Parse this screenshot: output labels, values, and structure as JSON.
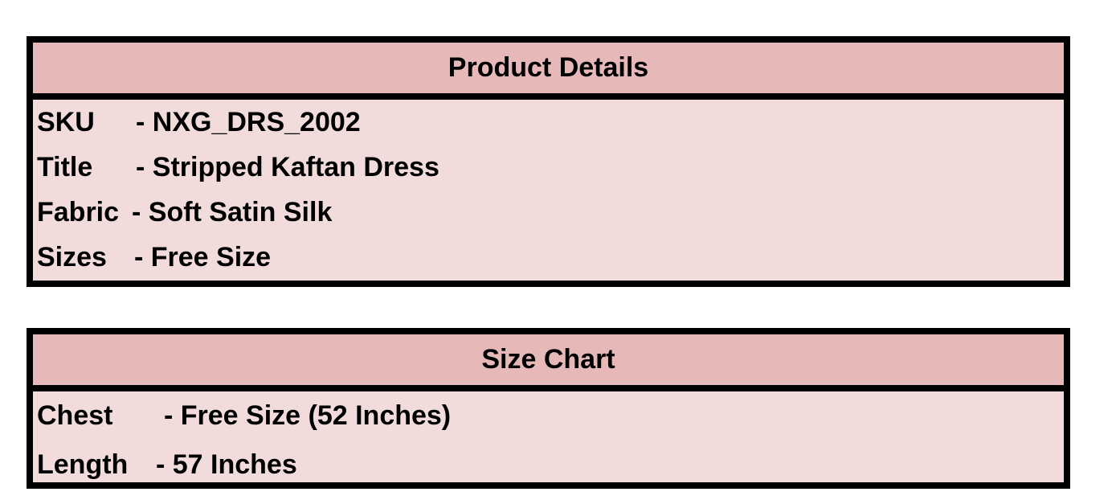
{
  "product_details": {
    "title": "Product Details",
    "rows": [
      {
        "label": "SKU",
        "value": "- NXG_DRS_2002"
      },
      {
        "label": "Title",
        "value": "- Stripped Kaftan Dress"
      },
      {
        "label": "Fabric",
        "value": "- Soft Satin Silk"
      },
      {
        "label": "Sizes",
        "value": "- Free Size"
      }
    ]
  },
  "size_chart": {
    "title": "Size Chart",
    "rows": [
      {
        "label": "Chest",
        "value": "- Free Size (52 Inches)"
      },
      {
        "label": "Length",
        "value": "- 57 Inches"
      }
    ]
  },
  "colors": {
    "header_bg": "#e6b8b7",
    "body_bg": "#f2dcdb",
    "border": "#000000"
  }
}
